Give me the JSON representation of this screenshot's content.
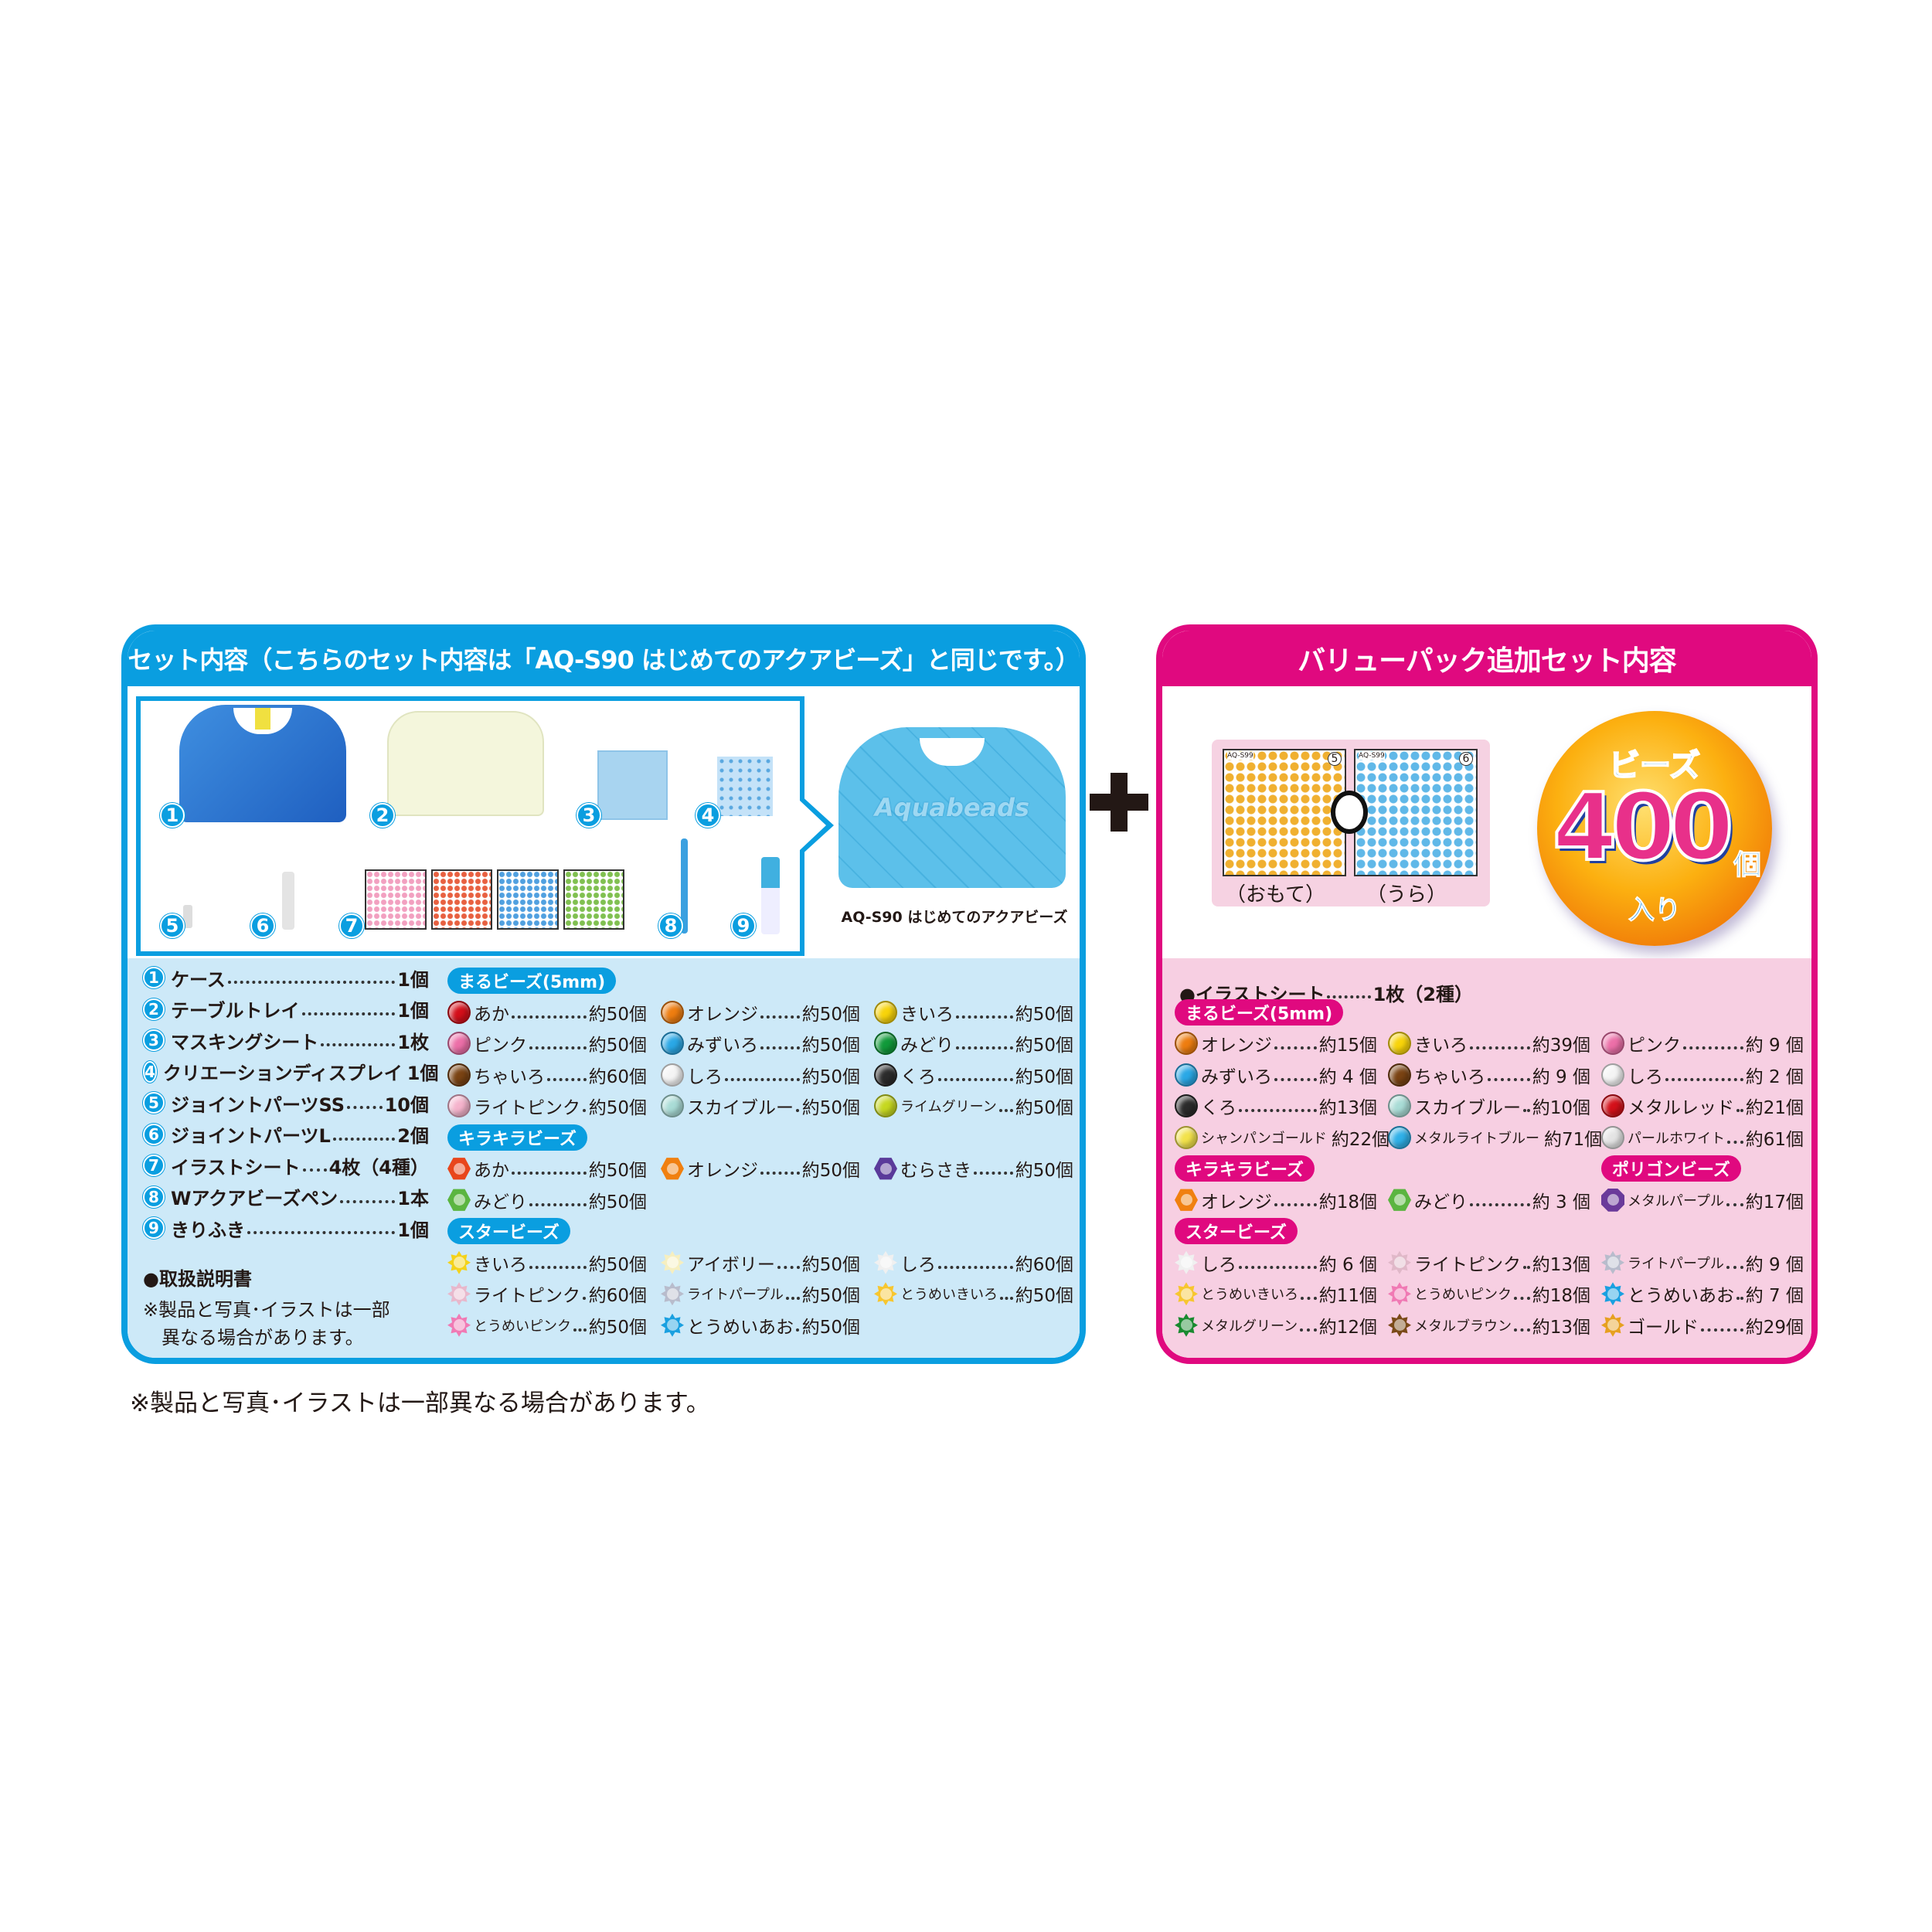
{
  "left_panel": {
    "title": "セット内容（こちらのセット内容は「AQ-S90 はじめてのアクアビーズ」と同じです。）",
    "product_caption": "AQ-S90 はじめてのアクアビーズ",
    "case_logo": "Aquabeads",
    "badges": [
      "1",
      "2",
      "3",
      "4",
      "5",
      "6",
      "7",
      "8",
      "9"
    ],
    "components": [
      {
        "num": "1",
        "name": "ケース",
        "count": "1個"
      },
      {
        "num": "2",
        "name": "テーブルトレイ",
        "count": "1個"
      },
      {
        "num": "3",
        "name": "マスキングシート",
        "count": "1枚"
      },
      {
        "num": "4",
        "name": "クリエーションディスプレイ",
        "count": "1個"
      },
      {
        "num": "5",
        "name": "ジョイントパーツSS",
        "count": "10個"
      },
      {
        "num": "6",
        "name": "ジョイントパーツL",
        "count": "2個"
      },
      {
        "num": "7",
        "name": "イラストシート",
        "count": "4枚（4種）"
      },
      {
        "num": "8",
        "name": "Wアクアビーズペン",
        "count": "1本"
      },
      {
        "num": "9",
        "name": "きりふき",
        "count": "1個"
      }
    ],
    "manual": "●取扱説明書",
    "note_line1": "※製品と写真･イラストは一部",
    "note_line2": "異なる場合があります。",
    "sections": [
      {
        "label": "まるビーズ(5mm)",
        "shape": "round",
        "items": [
          {
            "name": "あか",
            "count": "約50個",
            "color": "#d40f1a"
          },
          {
            "name": "オレンジ",
            "count": "約50個",
            "color": "#ee7d10"
          },
          {
            "name": "きいろ",
            "count": "約50個",
            "color": "#f8d40a"
          },
          {
            "name": "ピンク",
            "count": "約50個",
            "color": "#ec6fa8"
          },
          {
            "name": "みずいろ",
            "count": "約50個",
            "color": "#2aa8e6"
          },
          {
            "name": "みどり",
            "count": "約50個",
            "color": "#119a3a"
          },
          {
            "name": "ちゃいろ",
            "count": "約60個",
            "color": "#7a4313"
          },
          {
            "name": "しろ",
            "count": "約50個",
            "color": "#f4f4f4"
          },
          {
            "name": "くろ",
            "count": "約50個",
            "color": "#2b2b2b"
          },
          {
            "name": "ライトピンク",
            "count": "約50個",
            "color": "#f5b3cc"
          },
          {
            "name": "スカイブルー",
            "count": "約50個",
            "color": "#a9dcd6"
          },
          {
            "name": "ライムグリーン",
            "count": "約50個",
            "color": "#c6d820"
          }
        ]
      },
      {
        "label": "キラキラビーズ",
        "shape": "hex",
        "items": [
          {
            "name": "あか",
            "count": "約50個",
            "color": "#e8461c"
          },
          {
            "name": "オレンジ",
            "count": "約50個",
            "color": "#f08010"
          },
          {
            "name": "むらさき",
            "count": "約50個",
            "color": "#5a3a9a"
          },
          {
            "name": "みどり",
            "count": "約50個",
            "color": "#5bb540"
          }
        ]
      },
      {
        "label": "スタービーズ",
        "shape": "star",
        "items": [
          {
            "name": "きいろ",
            "count": "約50個",
            "color": "#f4d21a"
          },
          {
            "name": "アイボリー",
            "count": "約50個",
            "color": "#f6efc0"
          },
          {
            "name": "しろ",
            "count": "約60個",
            "color": "#f0f0f0"
          },
          {
            "name": "ライトピンク",
            "count": "約60個",
            "color": "#e8b8cc"
          },
          {
            "name": "ライトパープル",
            "count": "約50個",
            "color": "#b8bccc"
          },
          {
            "name": "とうめいきいろ",
            "count": "約50個",
            "color": "#f7c630"
          },
          {
            "name": "とうめいピンク",
            "count": "約50個",
            "color": "#f07ab4"
          },
          {
            "name": "とうめいあお",
            "count": "約50個",
            "color": "#1aa0e0"
          }
        ]
      }
    ]
  },
  "plus_sign": "+",
  "right_panel": {
    "title": "バリューパック追加セット内容",
    "sheet_front": "（おもて）",
    "sheet_back": "（うら）",
    "sheet_code": "AQ-S99",
    "sheet_pages": [
      "5",
      "6"
    ],
    "badge": {
      "top": "ビーズ",
      "number": "400",
      "unit": "個",
      "bottom": "入り"
    },
    "illust_sheet": {
      "name": "●イラストシート",
      "count": "1枚（2種）"
    },
    "sections": [
      {
        "label": "まるビーズ(5mm)",
        "shape": "round",
        "items": [
          {
            "name": "オレンジ",
            "count": "約15個",
            "color": "#ee7d10"
          },
          {
            "name": "きいろ",
            "count": "約39個",
            "color": "#f8d40a"
          },
          {
            "name": "ピンク",
            "count": "約 9 個",
            "color": "#ec6fa8"
          },
          {
            "name": "みずいろ",
            "count": "約 4 個",
            "color": "#2aa8e6"
          },
          {
            "name": "ちゃいろ",
            "count": "約 9 個",
            "color": "#7a4313"
          },
          {
            "name": "しろ",
            "count": "約 2 個",
            "color": "#f4f4f4"
          },
          {
            "name": "くろ",
            "count": "約13個",
            "color": "#2b2b2b"
          },
          {
            "name": "スカイブルー",
            "count": "約10個",
            "color": "#a9dcd6"
          },
          {
            "name": "メタルレッド",
            "count": "約21個",
            "color": "#d4101a"
          },
          {
            "name": "シャンパンゴールド",
            "count": "約22個",
            "color": "#f2e24a"
          },
          {
            "name": "メタルライトブルー",
            "count": "約71個",
            "color": "#2fb0e8"
          },
          {
            "name": "パールホワイト",
            "count": "約61個",
            "color": "#e4e4e4"
          }
        ]
      },
      {
        "label": "キラキラビーズ",
        "shape": "hex",
        "items": [
          {
            "name": "オレンジ",
            "count": "約18個",
            "color": "#f08010"
          },
          {
            "name": "みどり",
            "count": "約 3 個",
            "color": "#5bb540"
          }
        ]
      },
      {
        "label": "ポリゴンビーズ",
        "shape": "poly",
        "items": [
          {
            "name": "メタルパープル",
            "count": "約17個",
            "color": "#6a3a9a"
          }
        ]
      },
      {
        "label": "スタービーズ",
        "shape": "star",
        "items": [
          {
            "name": "しろ",
            "count": "約 6 個",
            "color": "#f0f0f0"
          },
          {
            "name": "ライトピンク",
            "count": "約13個",
            "color": "#e0b8c8"
          },
          {
            "name": "ライトパープル",
            "count": "約 9 個",
            "color": "#b8bccc"
          },
          {
            "name": "とうめいきいろ",
            "count": "約11個",
            "color": "#f7c630"
          },
          {
            "name": "とうめいピンク",
            "count": "約18個",
            "color": "#f07ab4"
          },
          {
            "name": "とうめいあお",
            "count": "約 7 個",
            "color": "#1aa0e0"
          },
          {
            "name": "メタルグリーン",
            "count": "約12個",
            "color": "#1a8a30"
          },
          {
            "name": "メタルブラウン",
            "count": "約13個",
            "color": "#7a4a18"
          },
          {
            "name": "ゴールド",
            "count": "約29個",
            "color": "#e6a020"
          }
        ]
      }
    ]
  },
  "footer_note": "※製品と写真･イラストは一部異なる場合があります。",
  "colors": {
    "blue": "#0a9ee0",
    "magenta": "#e0097f",
    "light_blue_bg": "#cde9f8",
    "light_pink_bg": "#f7cfe2"
  }
}
